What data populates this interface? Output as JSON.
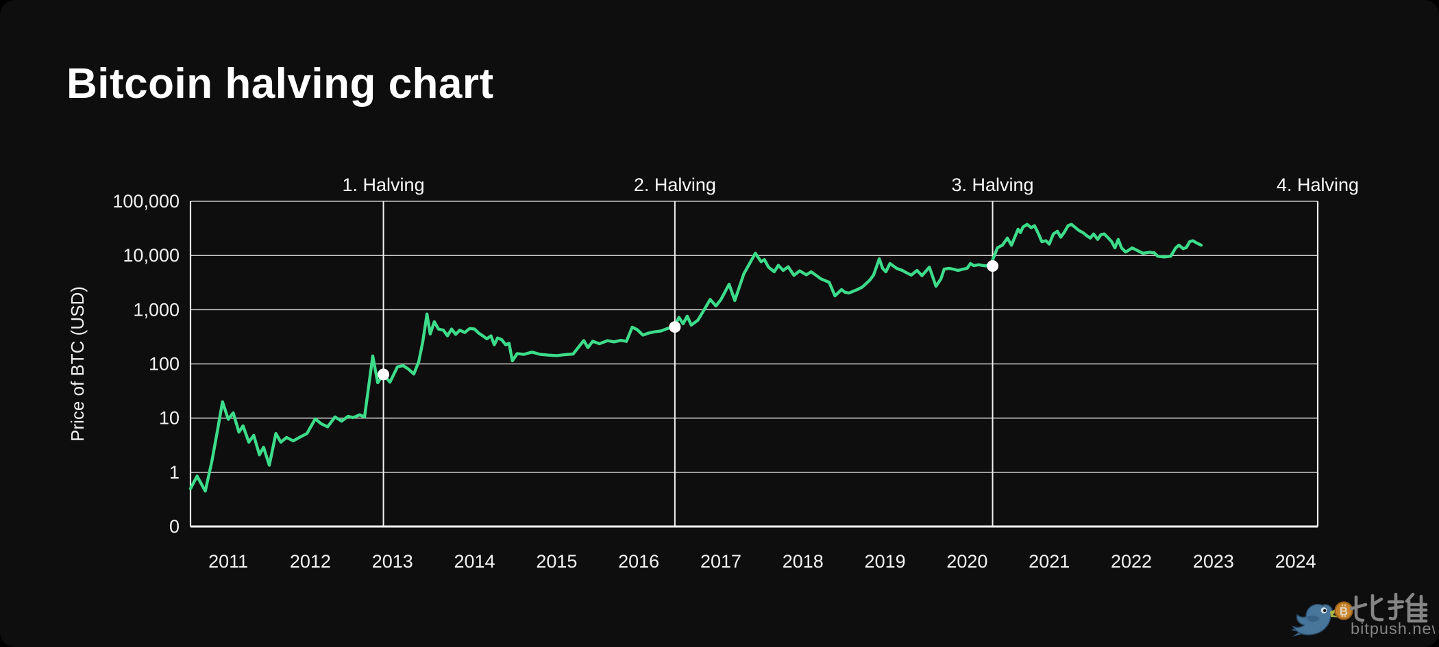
{
  "title": "Bitcoin halving chart",
  "watermark": {
    "brand_cn": "比推",
    "domain": "bitpush.news"
  },
  "colors": {
    "background": "#0e0e0e",
    "line": "#3ddc8a",
    "marker_dot": "#ffffff",
    "gridline": "#c9c9c9",
    "axis_border": "#e8e8e8",
    "bottom_border": "#ffffff",
    "halving_line": "#f0f0f0",
    "tick_text": "#f2f2f2",
    "title_text": "#ffffff",
    "watermark_text": "#8f8f8f",
    "bird_body": "#4d7ea6",
    "bird_wing": "#3c6a91",
    "beak": "#b8c24a",
    "coin": "#d9902e"
  },
  "chart_data": {
    "type": "line",
    "title": "Bitcoin halving chart",
    "xlabel": "",
    "ylabel": "Price of BTC (USD)",
    "y_scale": "log",
    "grid": "horizontal-decades-plus-halving-verticals",
    "xlim": [
      2010.54,
      2024.27
    ],
    "ylim_decades": [
      0,
      100000
    ],
    "x_ticks": [
      2011,
      2012,
      2013,
      2014,
      2015,
      2016,
      2017,
      2018,
      2019,
      2020,
      2021,
      2022,
      2023,
      2024
    ],
    "y_ticks": [
      {
        "label": "100,000",
        "value": 100000
      },
      {
        "label": "10,000",
        "value": 10000
      },
      {
        "label": "1,000",
        "value": 1000
      },
      {
        "label": "100",
        "value": 100
      },
      {
        "label": "10",
        "value": 10
      },
      {
        "label": "1",
        "value": 1
      },
      {
        "label": "0",
        "value": 0
      }
    ],
    "halvings": [
      {
        "label": "1. Halving",
        "x": 2012.89,
        "marker_price": 64
      },
      {
        "label": "2. Halving",
        "x": 2016.44,
        "marker_price": 480
      },
      {
        "label": "3. Halving",
        "x": 2020.31,
        "marker_price": 6400
      },
      {
        "label": "4. Halving",
        "x": 2024.27,
        "marker_price": null
      }
    ],
    "legend": "none",
    "series": [
      {
        "name": "Price of BTC (USD)",
        "color": "#3ddc8a",
        "points": [
          [
            2010.54,
            0.5
          ],
          [
            2010.62,
            0.85
          ],
          [
            2010.72,
            0.45
          ],
          [
            2010.8,
            1.6
          ],
          [
            2010.87,
            6
          ],
          [
            2010.93,
            20
          ],
          [
            2011.0,
            9.5
          ],
          [
            2011.06,
            12.5
          ],
          [
            2011.13,
            5.5
          ],
          [
            2011.18,
            7.2
          ],
          [
            2011.25,
            3.6
          ],
          [
            2011.31,
            4.8
          ],
          [
            2011.38,
            2.1
          ],
          [
            2011.43,
            2.9
          ],
          [
            2011.5,
            1.35
          ],
          [
            2011.58,
            5.2
          ],
          [
            2011.64,
            3.6
          ],
          [
            2011.71,
            4.4
          ],
          [
            2011.79,
            3.8
          ],
          [
            2011.88,
            4.5
          ],
          [
            2011.96,
            5.2
          ],
          [
            2012.06,
            9.7
          ],
          [
            2012.13,
            7.9
          ],
          [
            2012.21,
            6.9
          ],
          [
            2012.3,
            10.5
          ],
          [
            2012.38,
            8.8
          ],
          [
            2012.46,
            10.8
          ],
          [
            2012.52,
            10.2
          ],
          [
            2012.6,
            11.5
          ],
          [
            2012.66,
            10.5
          ],
          [
            2012.76,
            140
          ],
          [
            2012.82,
            45
          ],
          [
            2012.89,
            64
          ],
          [
            2012.97,
            46
          ],
          [
            2013.06,
            88
          ],
          [
            2013.13,
            93
          ],
          [
            2013.2,
            79
          ],
          [
            2013.26,
            65
          ],
          [
            2013.32,
            110
          ],
          [
            2013.37,
            260
          ],
          [
            2013.42,
            830
          ],
          [
            2013.46,
            355
          ],
          [
            2013.51,
            600
          ],
          [
            2013.56,
            440
          ],
          [
            2013.62,
            420
          ],
          [
            2013.67,
            330
          ],
          [
            2013.72,
            440
          ],
          [
            2013.77,
            350
          ],
          [
            2013.82,
            420
          ],
          [
            2013.88,
            380
          ],
          [
            2013.94,
            450
          ],
          [
            2014.0,
            440
          ],
          [
            2014.05,
            370
          ],
          [
            2014.1,
            330
          ],
          [
            2014.15,
            290
          ],
          [
            2014.2,
            330
          ],
          [
            2014.24,
            225
          ],
          [
            2014.28,
            300
          ],
          [
            2014.33,
            280
          ],
          [
            2014.38,
            225
          ],
          [
            2014.42,
            240
          ],
          [
            2014.46,
            114
          ],
          [
            2014.52,
            155
          ],
          [
            2014.6,
            150
          ],
          [
            2014.7,
            165
          ],
          [
            2014.8,
            150
          ],
          [
            2014.9,
            145
          ],
          [
            2015.0,
            142
          ],
          [
            2015.1,
            148
          ],
          [
            2015.2,
            152
          ],
          [
            2015.33,
            270
          ],
          [
            2015.38,
            200
          ],
          [
            2015.44,
            262
          ],
          [
            2015.52,
            235
          ],
          [
            2015.62,
            268
          ],
          [
            2015.7,
            255
          ],
          [
            2015.78,
            272
          ],
          [
            2015.85,
            260
          ],
          [
            2015.92,
            475
          ],
          [
            2015.98,
            430
          ],
          [
            2016.05,
            340
          ],
          [
            2016.12,
            370
          ],
          [
            2016.19,
            390
          ],
          [
            2016.27,
            405
          ],
          [
            2016.35,
            450
          ],
          [
            2016.43,
            480
          ],
          [
            2016.49,
            720
          ],
          [
            2016.54,
            550
          ],
          [
            2016.59,
            760
          ],
          [
            2016.64,
            520
          ],
          [
            2016.72,
            640
          ],
          [
            2016.81,
            1080
          ],
          [
            2016.87,
            1550
          ],
          [
            2016.94,
            1170
          ],
          [
            2017.0,
            1530
          ],
          [
            2017.1,
            2950
          ],
          [
            2017.17,
            1480
          ],
          [
            2017.28,
            4600
          ],
          [
            2017.42,
            11000
          ],
          [
            2017.49,
            7700
          ],
          [
            2017.53,
            8400
          ],
          [
            2017.58,
            6100
          ],
          [
            2017.65,
            5000
          ],
          [
            2017.7,
            6600
          ],
          [
            2017.76,
            5300
          ],
          [
            2017.82,
            6200
          ],
          [
            2017.89,
            4300
          ],
          [
            2017.96,
            5200
          ],
          [
            2018.04,
            4400
          ],
          [
            2018.1,
            5000
          ],
          [
            2018.17,
            4200
          ],
          [
            2018.22,
            3700
          ],
          [
            2018.32,
            3200
          ],
          [
            2018.39,
            1800
          ],
          [
            2018.47,
            2350
          ],
          [
            2018.51,
            2100
          ],
          [
            2018.56,
            2030
          ],
          [
            2018.66,
            2350
          ],
          [
            2018.72,
            2600
          ],
          [
            2018.81,
            3450
          ],
          [
            2018.86,
            4350
          ],
          [
            2018.93,
            8700
          ],
          [
            2018.97,
            5800
          ],
          [
            2019.01,
            5000
          ],
          [
            2019.06,
            7100
          ],
          [
            2019.14,
            5800
          ],
          [
            2019.21,
            5300
          ],
          [
            2019.25,
            4900
          ],
          [
            2019.32,
            4350
          ],
          [
            2019.39,
            5300
          ],
          [
            2019.45,
            4250
          ],
          [
            2019.54,
            6100
          ],
          [
            2019.62,
            2700
          ],
          [
            2019.68,
            3700
          ],
          [
            2019.72,
            5600
          ],
          [
            2019.78,
            5800
          ],
          [
            2019.83,
            5600
          ],
          [
            2019.89,
            5300
          ],
          [
            2019.95,
            5600
          ],
          [
            2020.0,
            5800
          ],
          [
            2020.04,
            7100
          ],
          [
            2020.08,
            6500
          ],
          [
            2020.14,
            6750
          ],
          [
            2020.2,
            6500
          ],
          [
            2020.28,
            6400
          ],
          [
            2020.37,
            13900
          ],
          [
            2020.43,
            15500
          ],
          [
            2020.49,
            21000
          ],
          [
            2020.54,
            15500
          ],
          [
            2020.62,
            30500
          ],
          [
            2020.65,
            26500
          ],
          [
            2020.68,
            33500
          ],
          [
            2020.73,
            37500
          ],
          [
            2020.78,
            32500
          ],
          [
            2020.82,
            35500
          ],
          [
            2020.87,
            25000
          ],
          [
            2020.91,
            18000
          ],
          [
            2020.96,
            18700
          ],
          [
            2021.0,
            16200
          ],
          [
            2021.05,
            25000
          ],
          [
            2021.1,
            28000
          ],
          [
            2021.14,
            21700
          ],
          [
            2021.18,
            26500
          ],
          [
            2021.23,
            35500
          ],
          [
            2021.27,
            37500
          ],
          [
            2021.32,
            32500
          ],
          [
            2021.36,
            29000
          ],
          [
            2021.41,
            26500
          ],
          [
            2021.46,
            23000
          ],
          [
            2021.5,
            21000
          ],
          [
            2021.54,
            25000
          ],
          [
            2021.59,
            19800
          ],
          [
            2021.63,
            24300
          ],
          [
            2021.67,
            25000
          ],
          [
            2021.71,
            21700
          ],
          [
            2021.76,
            18000
          ],
          [
            2021.8,
            13800
          ],
          [
            2021.84,
            19800
          ],
          [
            2021.88,
            13800
          ],
          [
            2021.93,
            11600
          ],
          [
            2021.97,
            12600
          ],
          [
            2022.01,
            13800
          ],
          [
            2022.09,
            12000
          ],
          [
            2022.14,
            11000
          ],
          [
            2022.22,
            11500
          ],
          [
            2022.28,
            11200
          ],
          [
            2022.32,
            9700
          ],
          [
            2022.4,
            9400
          ],
          [
            2022.48,
            9700
          ],
          [
            2022.54,
            13800
          ],
          [
            2022.58,
            15500
          ],
          [
            2022.63,
            13400
          ],
          [
            2022.67,
            14000
          ],
          [
            2022.71,
            18000
          ],
          [
            2022.75,
            18700
          ],
          [
            2022.79,
            17200
          ],
          [
            2022.85,
            15500
          ]
        ]
      }
    ]
  }
}
